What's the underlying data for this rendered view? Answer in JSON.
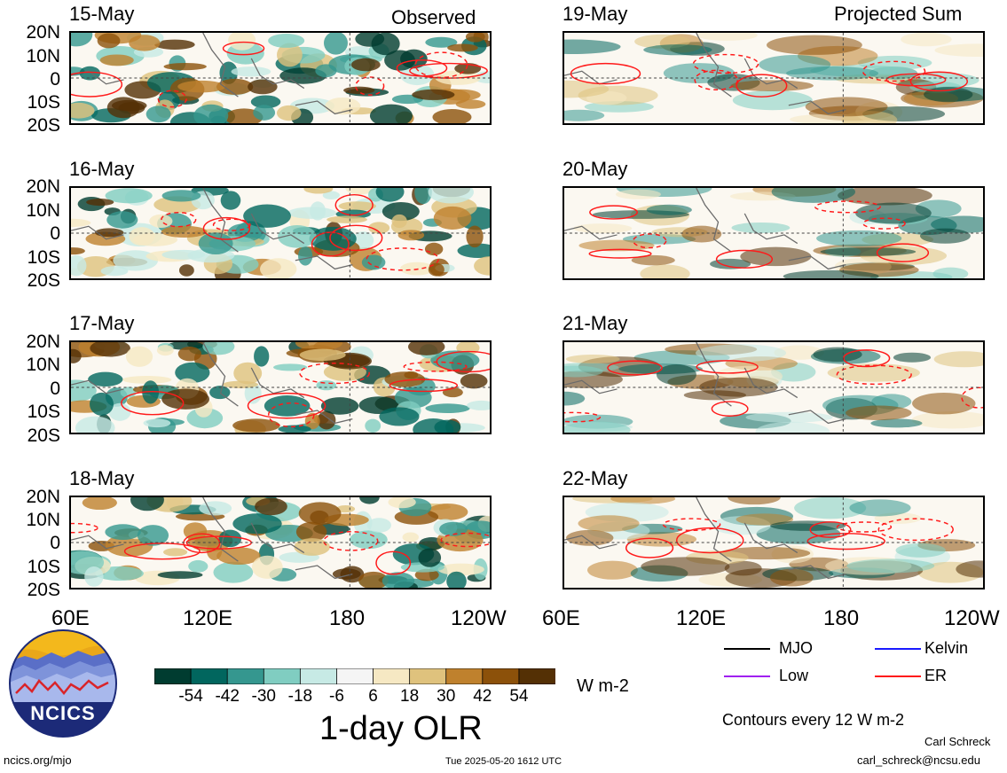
{
  "columns": {
    "observed": "Observed",
    "projected": "Projected Sum"
  },
  "panels_left": [
    {
      "date": "15-May"
    },
    {
      "date": "16-May"
    },
    {
      "date": "17-May"
    },
    {
      "date": "18-May"
    }
  ],
  "panels_right": [
    {
      "date": "19-May"
    },
    {
      "date": "20-May"
    },
    {
      "date": "21-May"
    },
    {
      "date": "22-May"
    }
  ],
  "lat_labels": [
    "20N",
    "10N",
    "0",
    "10S",
    "20S"
  ],
  "lon_labels": [
    "60E",
    "120E",
    "180",
    "120W"
  ],
  "colorbar": {
    "ticks": [
      "-54",
      "-42",
      "-30",
      "-18",
      "-6",
      "6",
      "18",
      "30",
      "42",
      "54"
    ],
    "colors": [
      "#003c30",
      "#01665e",
      "#35978f",
      "#80cdc1",
      "#c7eae5",
      "#f5f5f5",
      "#f6e8c3",
      "#dfc27d",
      "#bf812d",
      "#8c510a",
      "#543005"
    ],
    "units": "W m-2",
    "title": "1-day OLR"
  },
  "legend": {
    "items": [
      {
        "label": "MJO",
        "color": "#000000"
      },
      {
        "label": "Kelvin",
        "color": "#1a1aff"
      },
      {
        "label": "Low",
        "color": "#a020f0"
      },
      {
        "label": "ER",
        "color": "#ff1a1a"
      }
    ],
    "contour_note": "Contours every 12 W m-2"
  },
  "footer": {
    "website": "ncics.org/mjo",
    "timestamp": "Tue 2025-05-20 1612 UTC",
    "author": "Carl Schreck",
    "email": "carl_schreck@ncsu.edu",
    "logo_text": "NCICS"
  }
}
